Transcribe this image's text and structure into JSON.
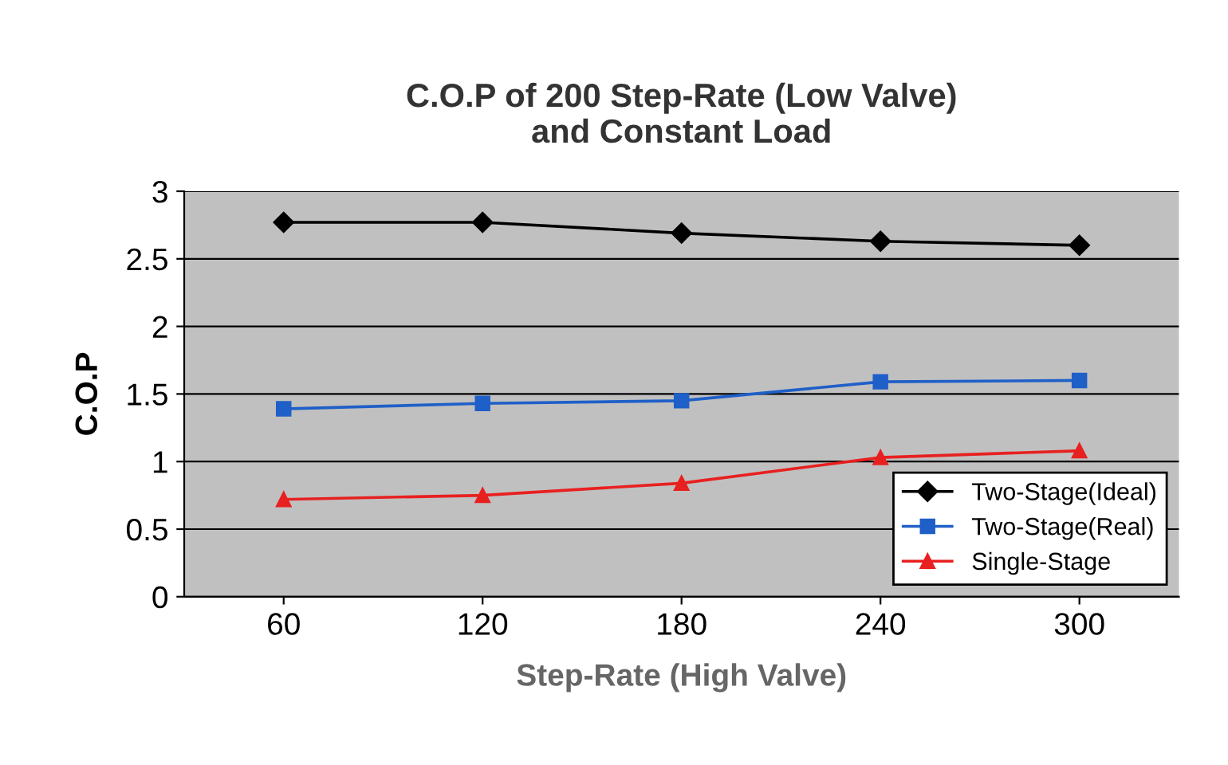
{
  "chart_data": {
    "type": "line",
    "title": "C.O.P of 200 Step-Rate (Low Valve)\nand Constant Load",
    "xlabel": "Step-Rate (High Valve)",
    "ylabel": "C.O.P",
    "categories": [
      "60",
      "120",
      "180",
      "240",
      "300"
    ],
    "series": [
      {
        "name": "Two-Stage(Ideal)",
        "color": "#000000",
        "marker": "diamond",
        "values": [
          2.77,
          2.77,
          2.69,
          2.63,
          2.6
        ]
      },
      {
        "name": "Two-Stage(Real)",
        "color": "#1f5fc8",
        "marker": "square",
        "values": [
          1.39,
          1.43,
          1.45,
          1.59,
          1.6
        ]
      },
      {
        "name": "Single-Stage",
        "color": "#e82020",
        "marker": "triangle",
        "values": [
          0.72,
          0.75,
          0.84,
          1.03,
          1.08
        ]
      }
    ],
    "ylim": [
      0,
      3
    ],
    "yticks": [
      0,
      0.5,
      1,
      1.5,
      2,
      2.5,
      3
    ],
    "grid": "y",
    "legend": "bottom right",
    "line_style": "solid"
  }
}
